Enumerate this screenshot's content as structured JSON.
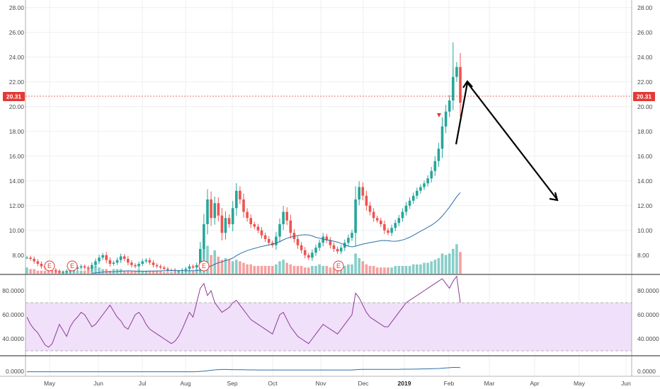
{
  "chart_data": [
    {
      "type": "candlestick",
      "name_note": "price panel",
      "ylim": [
        6.5,
        28
      ],
      "yticks": [
        "8.00",
        "10.00",
        "12.00",
        "14.00",
        "16.00",
        "18.00",
        "20.00",
        "22.00",
        "24.00",
        "26.00",
        "28.00"
      ],
      "last_price": "20.31",
      "x_labels": [
        "May",
        "Jun",
        "Jul",
        "Aug",
        "Sep",
        "Oct",
        "Nov",
        "Dec",
        "2019",
        "Feb",
        "Mar",
        "Apr",
        "May",
        "Jun"
      ],
      "earnings_markers": [
        "E",
        "E",
        "E",
        "E"
      ],
      "close_series": [
        7.8,
        7.7,
        7.5,
        7.3,
        7.1,
        7.0,
        6.9,
        6.8,
        6.7,
        6.6,
        6.6,
        6.7,
        6.8,
        6.9,
        7.0,
        7.1,
        7.0,
        6.9,
        7.2,
        7.5,
        7.8,
        8.0,
        7.6,
        7.3,
        7.4,
        7.6,
        7.9,
        7.7,
        7.4,
        7.2,
        7.1,
        7.3,
        7.5,
        7.6,
        7.4,
        7.2,
        7.1,
        7.0,
        6.9,
        6.8,
        6.8,
        6.7,
        6.7,
        6.8,
        6.9,
        7.1,
        7.0,
        7.2,
        8.5,
        10.5,
        12.5,
        11.0,
        12.2,
        11.2,
        9.8,
        11.0,
        10.5,
        11.8,
        13.2,
        12.5,
        11.5,
        11.0,
        10.5,
        10.3,
        10.0,
        9.6,
        9.3,
        9.0,
        8.8,
        9.5,
        10.5,
        11.5,
        10.8,
        9.8,
        9.3,
        8.8,
        8.4,
        8.0,
        7.8,
        8.2,
        8.6,
        9.0,
        9.5,
        9.2,
        8.8,
        8.5,
        8.3,
        8.6,
        9.0,
        9.4,
        9.8,
        12.5,
        13.5,
        12.8,
        12.0,
        11.5,
        11.0,
        10.8,
        10.5,
        10.0,
        9.8,
        10.2,
        10.6,
        11.0,
        11.5,
        12.0,
        12.4,
        12.8,
        13.2,
        13.5,
        13.8,
        14.2,
        14.8,
        15.6,
        16.6,
        18.4,
        19.6,
        20.5,
        22.4,
        23.2,
        20.31
      ],
      "volume_series": [
        0.4,
        0.3,
        0.3,
        0.2,
        0.2,
        0.2,
        0.3,
        0.2,
        0.2,
        0.2,
        0.2,
        0.2,
        0.3,
        0.3,
        0.2,
        0.2,
        0.2,
        0.3,
        0.4,
        0.5,
        0.4,
        0.3,
        0.3,
        0.2,
        0.3,
        0.3,
        0.3,
        0.2,
        0.2,
        0.2,
        0.2,
        0.3,
        0.2,
        0.2,
        0.2,
        0.2,
        0.2,
        0.2,
        0.1,
        0.1,
        0.1,
        0.1,
        0.1,
        0.1,
        0.2,
        0.2,
        0.2,
        0.3,
        0.9,
        1.6,
        1.8,
        1.2,
        1.5,
        1.1,
        0.9,
        1.0,
        0.9,
        0.8,
        0.9,
        0.8,
        0.7,
        0.6,
        0.6,
        0.5,
        0.5,
        0.5,
        0.5,
        0.5,
        0.5,
        0.6,
        0.8,
        0.9,
        0.7,
        0.6,
        0.5,
        0.5,
        0.5,
        0.4,
        0.4,
        0.5,
        0.5,
        0.6,
        0.5,
        0.5,
        0.4,
        0.4,
        0.4,
        0.5,
        0.5,
        0.6,
        0.6,
        1.3,
        1.0,
        0.8,
        0.6,
        0.5,
        0.5,
        0.4,
        0.4,
        0.4,
        0.4,
        0.4,
        0.5,
        0.5,
        0.5,
        0.5,
        0.5,
        0.6,
        0.6,
        0.6,
        0.7,
        0.7,
        0.8,
        0.9,
        1.0,
        1.3,
        1.2,
        1.3,
        1.6,
        1.9,
        1.4
      ]
    },
    {
      "type": "line",
      "name_note": "oscillator panel",
      "ylim": [
        25,
        95
      ],
      "yticks": [
        "40.0000",
        "60.0000",
        "80.0000"
      ],
      "band": [
        30,
        70
      ],
      "values": [
        58,
        52,
        48,
        45,
        40,
        35,
        33,
        36,
        44,
        52,
        47,
        42,
        50,
        55,
        58,
        62,
        60,
        55,
        50,
        52,
        56,
        60,
        64,
        68,
        63,
        58,
        55,
        50,
        48,
        54,
        60,
        62,
        58,
        52,
        48,
        46,
        44,
        42,
        40,
        38,
        36,
        38,
        42,
        48,
        55,
        62,
        58,
        70,
        82,
        86,
        76,
        80,
        70,
        66,
        62,
        64,
        66,
        70,
        72,
        68,
        64,
        60,
        56,
        54,
        52,
        50,
        48,
        46,
        44,
        52,
        60,
        62,
        56,
        50,
        46,
        42,
        40,
        38,
        36,
        40,
        44,
        48,
        52,
        50,
        48,
        46,
        44,
        48,
        52,
        56,
        60,
        78,
        74,
        68,
        62,
        58,
        56,
        54,
        52,
        50,
        50,
        54,
        58,
        62,
        66,
        70,
        72,
        74,
        76,
        78,
        80,
        82,
        84,
        86,
        88,
        90,
        86,
        82,
        88,
        92,
        70
      ]
    },
    {
      "type": "line",
      "name_note": "bottom indicator",
      "yticks": [
        "0.0000",
        "0.0000"
      ],
      "values": [
        0.02,
        0.02,
        0.02,
        0.02,
        0.02,
        0.02,
        0.02,
        0.02,
        0.02,
        0.02,
        0.02,
        0.02,
        0.02,
        0.02,
        0.02,
        0.02,
        0.02,
        0.02,
        0.02,
        0.02,
        0.02,
        0.02,
        0.02,
        0.02,
        0.02,
        0.02,
        0.02,
        0.02,
        0.02,
        0.02,
        0.02,
        0.02,
        0.02,
        0.02,
        0.02,
        0.02,
        0.02,
        0.02,
        0.02,
        0.02,
        0.02,
        0.02,
        0.02,
        0.02,
        0.02,
        0.02,
        0.02,
        0.03,
        0.05,
        0.07,
        0.1,
        0.14,
        0.17,
        0.19,
        0.2,
        0.2,
        0.19,
        0.19,
        0.18,
        0.18,
        0.18,
        0.17,
        0.17,
        0.17,
        0.16,
        0.16,
        0.16,
        0.16,
        0.16,
        0.16,
        0.16,
        0.16,
        0.16,
        0.16,
        0.16,
        0.16,
        0.16,
        0.16,
        0.16,
        0.16,
        0.16,
        0.16,
        0.16,
        0.16,
        0.16,
        0.16,
        0.16,
        0.16,
        0.16,
        0.16,
        0.16,
        0.18,
        0.2,
        0.21,
        0.21,
        0.21,
        0.21,
        0.21,
        0.21,
        0.21,
        0.21,
        0.21,
        0.21,
        0.21,
        0.22,
        0.22,
        0.22,
        0.23,
        0.23,
        0.24,
        0.24,
        0.25,
        0.26,
        0.27,
        0.28,
        0.3,
        0.32,
        0.34,
        0.36,
        0.36,
        0.35
      ]
    }
  ],
  "colors": {
    "up": "#26a69a",
    "down": "#ef5350",
    "ma": "#2a6fa8",
    "oscillator": "#8e3c94",
    "band_fill": "#f0e0fa",
    "price_line": "#e53935",
    "grid": "#eceff2",
    "annotation": "#000000"
  }
}
